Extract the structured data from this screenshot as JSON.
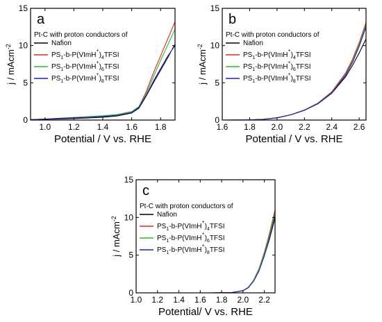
{
  "chart_data": [
    {
      "type": "line",
      "panel_label": "a",
      "xlabel": "Potential / V vs. RHE",
      "ylabel": "j / mAcm",
      "ylabel_sup": "-2",
      "xlim": [
        0.9,
        1.9
      ],
      "ylim": [
        0,
        15
      ],
      "xticks": [
        "1.0",
        "1.2",
        "1.4",
        "1.6",
        "1.8"
      ],
      "yticks": [
        "0",
        "5",
        "10",
        "15"
      ],
      "legend_title": "Pt-C with proton conductors of",
      "legend_position": "top-left",
      "series": [
        {
          "name": "Nafion",
          "name_parts": [
            "Nafion"
          ],
          "color": "#000000",
          "x": [
            0.9,
            1.0,
            1.1,
            1.2,
            1.3,
            1.4,
            1.5,
            1.6,
            1.65,
            1.7,
            1.75,
            1.8,
            1.85,
            1.9
          ],
          "y": [
            0.05,
            0.1,
            0.15,
            0.2,
            0.28,
            0.38,
            0.55,
            0.95,
            1.6,
            3.2,
            5.0,
            6.7,
            8.4,
            10.2
          ]
        },
        {
          "name": "PS1-b-P(VImH+)4TFSI",
          "name_parts": [
            "PS",
            "1",
            "-b-P(VImH",
            "+",
            ")",
            "4",
            "TFSI"
          ],
          "color": "#e8281e",
          "x": [
            0.9,
            1.0,
            1.1,
            1.2,
            1.3,
            1.4,
            1.5,
            1.6,
            1.65,
            1.7,
            1.75,
            1.8,
            1.85,
            1.9
          ],
          "y": [
            0.05,
            0.12,
            0.2,
            0.28,
            0.36,
            0.48,
            0.65,
            1.05,
            1.8,
            3.8,
            6.3,
            8.6,
            10.9,
            13.2
          ]
        },
        {
          "name": "PS1-b-P(VImH+)6TFSI",
          "name_parts": [
            "PS",
            "1",
            "-b-P(VImH",
            "+",
            ")",
            "6",
            "TFSI"
          ],
          "color": "#22c022",
          "x": [
            0.9,
            1.0,
            1.1,
            1.2,
            1.3,
            1.4,
            1.5,
            1.6,
            1.65,
            1.7,
            1.75,
            1.8,
            1.85,
            1.9
          ],
          "y": [
            0.05,
            0.14,
            0.25,
            0.36,
            0.46,
            0.58,
            0.75,
            1.15,
            1.8,
            3.5,
            5.8,
            8.0,
            10.1,
            12.2
          ]
        },
        {
          "name": "PS1-b-P(VImH+)8TFSI",
          "name_parts": [
            "PS",
            "1",
            "-b-P(VImH",
            "+",
            ")",
            "8",
            "TFSI"
          ],
          "color": "#1e1ec8",
          "x": [
            0.9,
            1.0,
            1.1,
            1.2,
            1.3,
            1.4,
            1.5,
            1.6,
            1.65,
            1.7,
            1.75,
            1.8,
            1.85,
            1.9
          ],
          "y": [
            0.05,
            0.13,
            0.22,
            0.3,
            0.38,
            0.48,
            0.62,
            1.0,
            1.7,
            3.3,
            5.2,
            6.9,
            8.6,
            10.0
          ]
        }
      ]
    },
    {
      "type": "line",
      "panel_label": "b",
      "xlabel": "Potential / V vs. RHE",
      "ylabel": "j / mAcm",
      "ylabel_sup": "-2",
      "xlim": [
        1.6,
        2.65
      ],
      "ylim": [
        0,
        15
      ],
      "xticks": [
        "1.6",
        "1.8",
        "2.0",
        "2.2",
        "2.4",
        "2.6"
      ],
      "yticks": [
        "0",
        "5",
        "10",
        "15"
      ],
      "legend_title": "Pt-C with proton conductors of",
      "legend_position": "top-left",
      "series": [
        {
          "name": "Nafion",
          "name_parts": [
            "Nafion"
          ],
          "color": "#000000",
          "x": [
            1.6,
            1.8,
            1.9,
            2.0,
            2.1,
            2.2,
            2.3,
            2.4,
            2.5,
            2.55,
            2.6,
            2.65
          ],
          "y": [
            0.0,
            0.02,
            0.1,
            0.3,
            0.7,
            1.3,
            2.2,
            3.6,
            5.8,
            7.3,
            9.0,
            10.9
          ]
        },
        {
          "name": "PS1-b-P(VImH+)4TFSI",
          "name_parts": [
            "PS",
            "1",
            "-b-P(VImH",
            "+",
            ")",
            "4",
            "TFSI"
          ],
          "color": "#e8281e",
          "x": [
            1.6,
            1.8,
            1.9,
            2.0,
            2.1,
            2.2,
            2.3,
            2.4,
            2.5,
            2.55,
            2.6,
            2.65
          ],
          "y": [
            0.0,
            0.02,
            0.1,
            0.32,
            0.72,
            1.35,
            2.3,
            3.8,
            6.3,
            8.1,
            10.4,
            13.1
          ]
        },
        {
          "name": "PS1-b-P(VImH+)6TFSI",
          "name_parts": [
            "PS",
            "1",
            "-b-P(VImH",
            "+",
            ")",
            "6",
            "TFSI"
          ],
          "color": "#22c022",
          "x": [
            1.6,
            1.8,
            1.9,
            2.0,
            2.1,
            2.2,
            2.3,
            2.4,
            2.5,
            2.55,
            2.6,
            2.65
          ],
          "y": [
            0.0,
            0.02,
            0.1,
            0.31,
            0.71,
            1.33,
            2.25,
            3.7,
            6.1,
            7.9,
            10.1,
            12.8
          ]
        },
        {
          "name": "PS1-b-P(VImH+)8TFSI",
          "name_parts": [
            "PS",
            "1",
            "-b-P(VImH",
            "+",
            ")",
            "8",
            "TFSI"
          ],
          "color": "#1e1ec8",
          "x": [
            1.6,
            1.8,
            1.9,
            2.0,
            2.1,
            2.2,
            2.3,
            2.4,
            2.5,
            2.55,
            2.6,
            2.65
          ],
          "y": [
            0.0,
            0.02,
            0.1,
            0.3,
            0.7,
            1.32,
            2.22,
            3.65,
            6.0,
            7.7,
            9.9,
            12.5
          ]
        }
      ]
    },
    {
      "type": "line",
      "panel_label": "c",
      "xlabel": "Potential/ V vs. RHE",
      "ylabel": "j / mAcm",
      "ylabel_sup": "-2",
      "xlim": [
        1.0,
        2.3
      ],
      "ylim": [
        0,
        15
      ],
      "xticks": [
        "1.0",
        "1.2",
        "1.4",
        "1.6",
        "1.8",
        "2.0",
        "2.2"
      ],
      "yticks": [
        "0",
        "5",
        "10",
        "15"
      ],
      "legend_title": "Pt-C with proton conductors of",
      "legend_position": "top-left",
      "series": [
        {
          "name": "Nafion",
          "name_parts": [
            "Nafion"
          ],
          "color": "#000000",
          "x": [
            1.1,
            1.4,
            1.7,
            1.9,
            2.0,
            2.05,
            2.1,
            2.15,
            2.2,
            2.25,
            2.3
          ],
          "y": [
            0.0,
            0.0,
            0.0,
            0.05,
            0.3,
            0.7,
            1.6,
            3.0,
            5.0,
            7.4,
            10.2
          ]
        },
        {
          "name": "PS1-b-P(VImH+)4TFSI",
          "name_parts": [
            "PS",
            "1",
            "-b-P(VImH",
            "+",
            ")",
            "4",
            "TFSI"
          ],
          "color": "#e8281e",
          "x": [
            1.1,
            1.4,
            1.7,
            1.9,
            2.0,
            2.05,
            2.1,
            2.15,
            2.2,
            2.25,
            2.3
          ],
          "y": [
            0.0,
            0.0,
            0.0,
            0.05,
            0.3,
            0.75,
            1.7,
            3.2,
            5.4,
            8.0,
            11.0
          ]
        },
        {
          "name": "PS1-b-P(VImH+)6TFSI",
          "name_parts": [
            "PS",
            "1",
            "-b-P(VImH",
            "+",
            ")",
            "6",
            "TFSI"
          ],
          "color": "#22c022",
          "x": [
            1.1,
            1.4,
            1.7,
            1.9,
            2.0,
            2.05,
            2.1,
            2.15,
            2.2,
            2.25,
            2.3
          ],
          "y": [
            0.0,
            0.0,
            0.0,
            0.05,
            0.3,
            0.72,
            1.65,
            3.1,
            5.2,
            7.7,
            10.6
          ]
        },
        {
          "name": "PS1-b-P(VImH+)8TFSI",
          "name_parts": [
            "PS",
            "1",
            "-b-P(VImH",
            "+",
            ")",
            "8",
            "TFSI"
          ],
          "color": "#1e1ec8",
          "x": [
            1.1,
            1.4,
            1.7,
            1.9,
            2.0,
            2.05,
            2.1,
            2.15,
            2.2,
            2.25,
            2.3
          ],
          "y": [
            0.0,
            0.0,
            0.0,
            0.05,
            0.28,
            0.68,
            1.55,
            2.9,
            4.9,
            7.2,
            9.9
          ]
        }
      ]
    }
  ]
}
